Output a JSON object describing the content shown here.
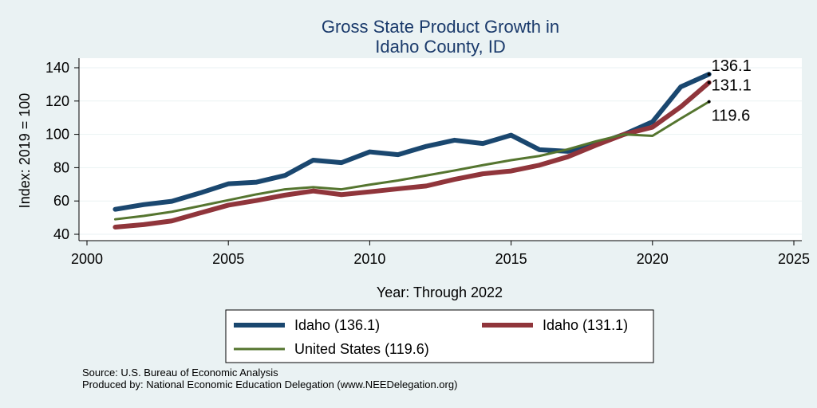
{
  "chart_data": {
    "type": "line",
    "title": [
      "Gross State Product Growth in",
      "Idaho County, ID"
    ],
    "xlabel": "Year: Through 2022",
    "ylabel": "Index: 2019 = 100",
    "xlim": [
      2000,
      2025
    ],
    "ylim": [
      40,
      140
    ],
    "xticks": [
      2000,
      2005,
      2010,
      2015,
      2020,
      2025
    ],
    "yticks": [
      40,
      60,
      80,
      100,
      120,
      140
    ],
    "grid": true,
    "legend_position": "bottom",
    "x": [
      2001,
      2002,
      2003,
      2004,
      2005,
      2006,
      2007,
      2008,
      2009,
      2010,
      2011,
      2012,
      2013,
      2014,
      2015,
      2016,
      2017,
      2018,
      2019,
      2020,
      2021,
      2022
    ],
    "series": [
      {
        "name": "Idaho  (136.1)",
        "color": "#1a476f",
        "values": [
          55,
          57.8,
          59.8,
          64.8,
          70.3,
          71.3,
          75.3,
          84.5,
          83,
          89.5,
          87.8,
          92.8,
          96.5,
          94.5,
          99.5,
          90.8,
          89.8,
          94,
          100,
          107.5,
          128.5,
          136.1
        ],
        "end_label": "136.1"
      },
      {
        "name": "Idaho (131.1)",
        "color": "#90353b",
        "values": [
          44.3,
          45.8,
          48,
          52.8,
          57.5,
          60.3,
          63.5,
          66,
          63.8,
          65.5,
          67.3,
          69,
          73,
          76.3,
          78,
          81.5,
          86.5,
          93.5,
          100,
          104.3,
          116.5,
          131.1
        ],
        "end_label": "131.1"
      },
      {
        "name": "United States (119.6)",
        "color": "#55752f",
        "values": [
          49,
          51,
          53.5,
          57,
          60.5,
          64,
          67,
          68.3,
          67,
          69.8,
          72.3,
          75.3,
          78.3,
          81.5,
          84.5,
          87,
          91,
          95.8,
          100,
          99.1,
          109.5,
          119.6
        ],
        "end_label": "119.6"
      }
    ]
  },
  "footnote": {
    "source": "Source: U.S. Bureau of Economic Analysis",
    "produced": "Produced by: National Economic Education Delegation (www.NEEDelegation.org)"
  }
}
